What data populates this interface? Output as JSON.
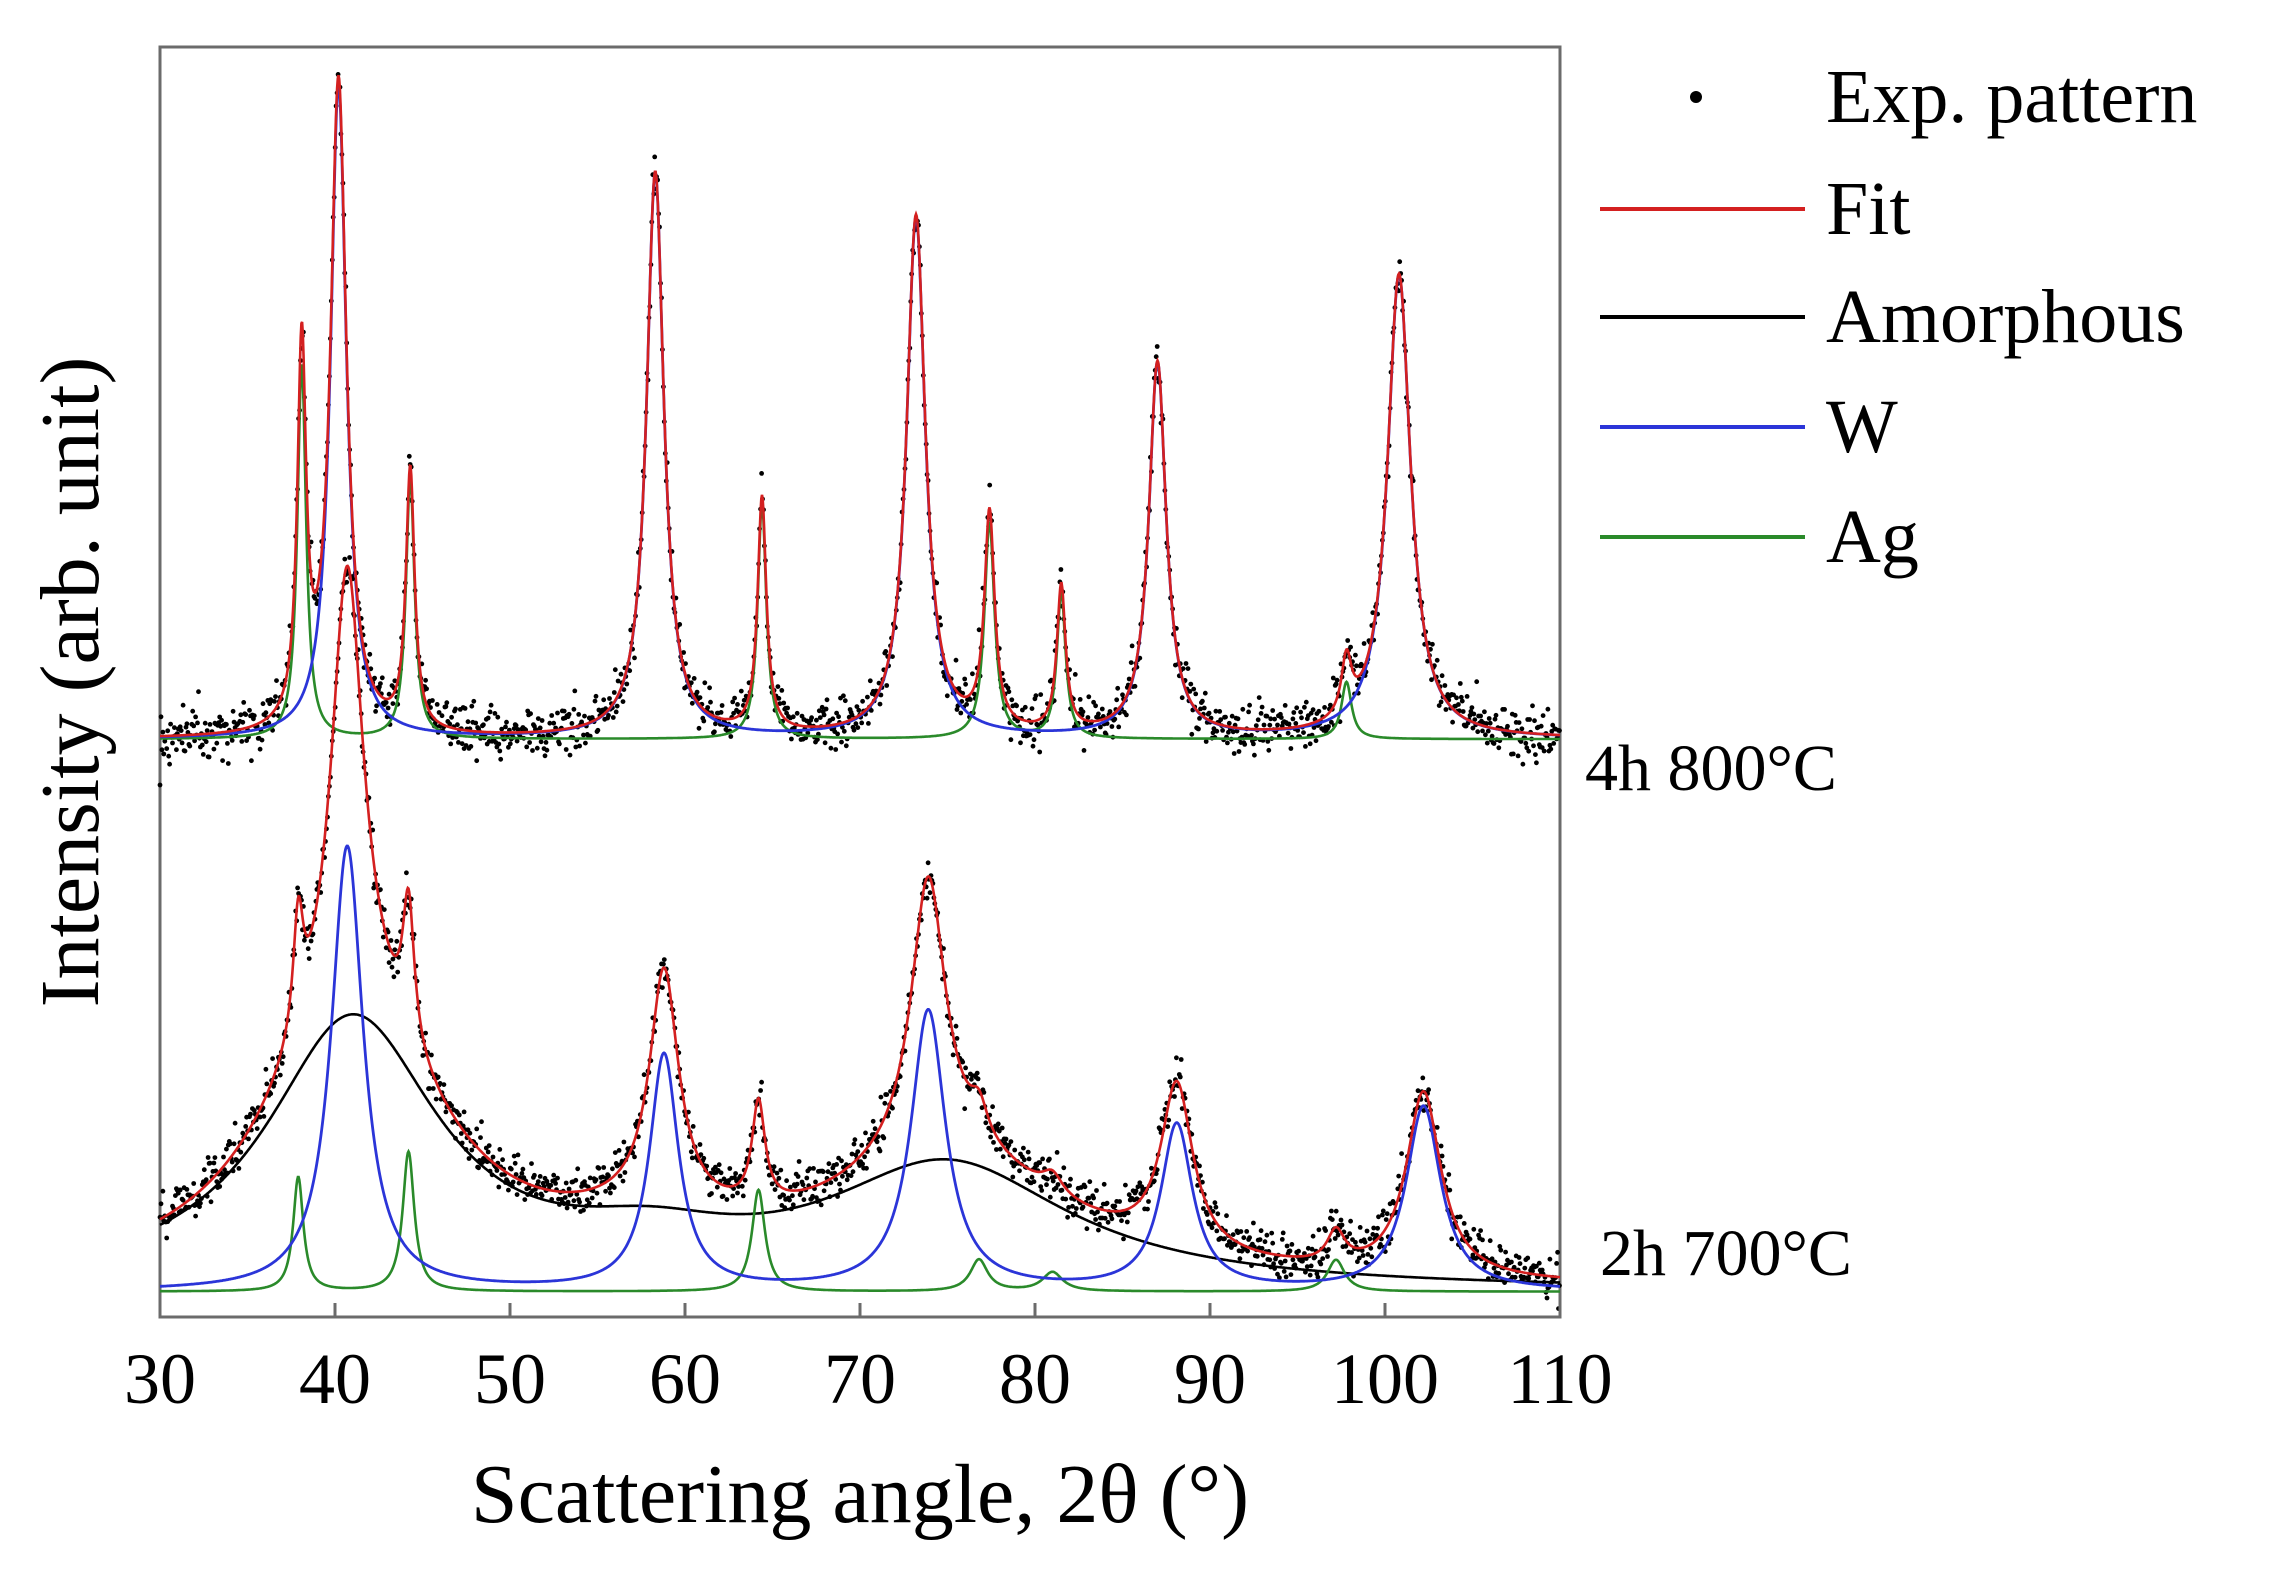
{
  "chart_data": {
    "type": "line",
    "title": "",
    "xlabel": "Scattering angle, 2θ (°)",
    "ylabel": "Intensity (arb. unit)",
    "xlim": [
      30,
      110
    ],
    "ylim": [
      0,
      100
    ],
    "xticks": [
      30,
      40,
      50,
      60,
      70,
      80,
      90,
      100,
      110
    ],
    "grid": false,
    "legend_position": "right",
    "legend": [
      {
        "label": "Exp. pattern",
        "kind": "dot",
        "color": "#000000"
      },
      {
        "label": "Fit",
        "kind": "line",
        "color": "#d42020"
      },
      {
        "label": "Amorphous",
        "kind": "line",
        "color": "#000000"
      },
      {
        "label": "W",
        "kind": "line",
        "color": "#2b35d8"
      },
      {
        "label": "Ag",
        "kind": "line",
        "color": "#2a8a2a"
      }
    ],
    "patterns": [
      {
        "name": "4h 800°C",
        "baseline": 45.5,
        "noise": 0.9,
        "amorphous": null,
        "W_peaks": [
          {
            "pos": 40.2,
            "height": 51.5,
            "width": 0.55
          },
          {
            "pos": 58.3,
            "height": 44.5,
            "width": 0.6
          },
          {
            "pos": 73.2,
            "height": 41.0,
            "width": 0.65
          },
          {
            "pos": 87.0,
            "height": 29.5,
            "width": 0.6
          },
          {
            "pos": 100.8,
            "height": 36.5,
            "width": 0.8
          }
        ],
        "Ag_peaks": [
          {
            "pos": 38.1,
            "height": 29.5,
            "width": 0.3
          },
          {
            "pos": 44.3,
            "height": 20.5,
            "width": 0.3
          },
          {
            "pos": 64.4,
            "height": 18.5,
            "width": 0.3
          },
          {
            "pos": 77.4,
            "height": 17.0,
            "width": 0.35
          },
          {
            "pos": 81.5,
            "height": 11.5,
            "width": 0.3
          },
          {
            "pos": 97.8,
            "height": 4.5,
            "width": 0.35
          }
        ]
      },
      {
        "name": "2h 700°C",
        "baseline": 2.0,
        "noise": 0.8,
        "amorphous": [
          {
            "pos": 41.0,
            "height": 21.0,
            "width": 6.0
          },
          {
            "pos": 75.0,
            "height": 9.5,
            "width": 8.5
          },
          {
            "pos": 58.0,
            "height": 2.5,
            "width": 6.0
          }
        ],
        "W_peaks": [
          {
            "pos": 40.7,
            "height": 35.0,
            "width": 1.1
          },
          {
            "pos": 58.8,
            "height": 18.5,
            "width": 1.0
          },
          {
            "pos": 73.9,
            "height": 22.0,
            "width": 1.2
          },
          {
            "pos": 88.1,
            "height": 13.0,
            "width": 1.1
          },
          {
            "pos": 102.2,
            "height": 14.5,
            "width": 1.2
          }
        ],
        "Ag_peaks": [
          {
            "pos": 37.9,
            "height": 9.0,
            "width": 0.35
          },
          {
            "pos": 44.2,
            "height": 11.0,
            "width": 0.4
          },
          {
            "pos": 64.2,
            "height": 8.0,
            "width": 0.45
          },
          {
            "pos": 76.8,
            "height": 2.5,
            "width": 0.6
          },
          {
            "pos": 81.0,
            "height": 1.5,
            "width": 0.7
          },
          {
            "pos": 97.2,
            "height": 2.5,
            "width": 0.6
          }
        ]
      }
    ]
  }
}
